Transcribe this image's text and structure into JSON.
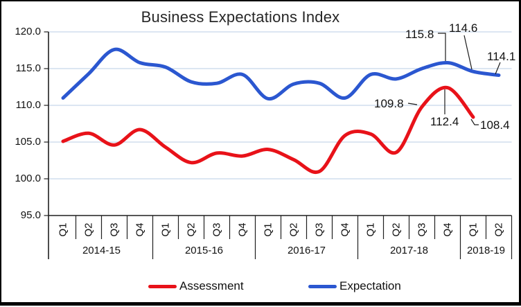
{
  "title": "Business Expectations Index",
  "y_axis": {
    "tick_labels": [
      "120.0",
      "115.0",
      "110.0",
      "105.0",
      "100.0",
      "95.0"
    ]
  },
  "x_axis": {
    "quarter_labels": [
      "Q1",
      "Q2",
      "Q3",
      "Q4",
      "Q1",
      "Q2",
      "Q3",
      "Q4",
      "Q1",
      "Q2",
      "Q3",
      "Q4",
      "Q1",
      "Q2",
      "Q3",
      "Q4",
      "Q1",
      "Q2"
    ],
    "year_groups": [
      {
        "label": "2014-15",
        "span": 4
      },
      {
        "label": "2015-16",
        "span": 4
      },
      {
        "label": "2016-17",
        "span": 4
      },
      {
        "label": "2017-18",
        "span": 4
      },
      {
        "label": "2018-19",
        "span": 2
      }
    ]
  },
  "legend": {
    "items": [
      {
        "label": "Assessment",
        "color": "#e81219"
      },
      {
        "label": "Expectation",
        "color": "#2b57d0"
      }
    ]
  },
  "colors": {
    "assessment": "#e81219",
    "expectation": "#2b57d0",
    "gridline": "#b8cce4",
    "axis": "#1f1f1f",
    "label_text": "#111111"
  },
  "chart_data": {
    "type": "line",
    "title": "Business Expectations Index",
    "x": [
      "2014-15 Q1",
      "2014-15 Q2",
      "2014-15 Q3",
      "2014-15 Q4",
      "2015-16 Q1",
      "2015-16 Q2",
      "2015-16 Q3",
      "2015-16 Q4",
      "2016-17 Q1",
      "2016-17 Q2",
      "2016-17 Q3",
      "2016-17 Q4",
      "2017-18 Q1",
      "2017-18 Q2",
      "2017-18 Q3",
      "2017-18 Q4",
      "2018-19 Q1",
      "2018-19 Q2"
    ],
    "series": [
      {
        "name": "Assessment",
        "color": "#e81219",
        "values": [
          105.1,
          106.2,
          104.6,
          106.7,
          104.3,
          102.2,
          103.5,
          103.1,
          104.0,
          102.6,
          101.0,
          105.9,
          106.1,
          103.6,
          109.8,
          112.4,
          108.4,
          null
        ]
      },
      {
        "name": "Expectation",
        "color": "#2b57d0",
        "values": [
          111.0,
          114.3,
          117.6,
          115.8,
          115.2,
          113.2,
          113.0,
          114.2,
          110.9,
          112.9,
          113.0,
          111.0,
          114.2,
          113.6,
          115.0,
          115.8,
          114.6,
          114.1
        ]
      }
    ],
    "ylim": [
      95,
      120
    ],
    "ytick_step": 5,
    "grid": "horizontal",
    "smoothed_lines": true,
    "legend_position": "bottom",
    "annotations": [
      {
        "id": "e15",
        "series": "Expectation",
        "x": "2017-18 Q4",
        "text": "115.8"
      },
      {
        "id": "e16",
        "series": "Expectation",
        "x": "2018-19 Q1",
        "text": "114.6"
      },
      {
        "id": "e17",
        "series": "Expectation",
        "x": "2018-19 Q2",
        "text": "114.1"
      },
      {
        "id": "a14",
        "series": "Assessment",
        "x": "2017-18 Q3",
        "text": "109.8"
      },
      {
        "id": "a15",
        "series": "Assessment",
        "x": "2017-18 Q4",
        "text": "112.4"
      },
      {
        "id": "a16",
        "series": "Assessment",
        "x": "2018-19 Q1",
        "text": "108.4"
      }
    ]
  }
}
